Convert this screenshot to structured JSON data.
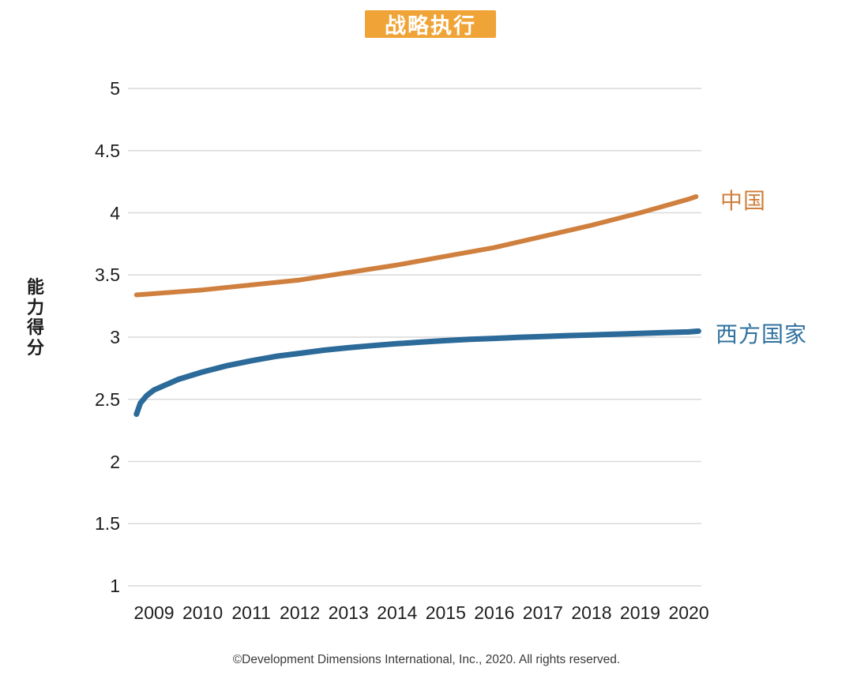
{
  "chart": {
    "title": "战略执行",
    "title_bg_color": "#F0A437",
    "title_text_color": "#FFFFFF",
    "y_axis": {
      "title": "能力得分",
      "tick_labels": [
        "5",
        "4.5",
        "4",
        "3.5",
        "3",
        "2.5",
        "2",
        "1.5",
        "1"
      ],
      "tick_values": [
        5,
        4.5,
        4,
        3.5,
        3,
        2.5,
        2,
        1.5,
        1
      ]
    },
    "x_axis": {
      "tick_labels": [
        "2009",
        "2010",
        "2011",
        "2012",
        "2013",
        "2014",
        "2015",
        "2016",
        "2017",
        "2018",
        "2019",
        "2020"
      ],
      "tick_values": [
        2009,
        2010,
        2011,
        2012,
        2013,
        2014,
        2015,
        2016,
        2017,
        2018,
        2019,
        2020
      ]
    },
    "grid_color": "#D9D9D9"
  },
  "chart_data": {
    "type": "line",
    "title": "战略执行",
    "xlabel": "",
    "ylabel": "能力得分",
    "ylim": [
      1,
      5
    ],
    "grid": "horizontal",
    "legend_position": "right of line ends",
    "categories": [
      2009,
      2010,
      2011,
      2012,
      2013,
      2014,
      2015,
      2016,
      2017,
      2018,
      2019,
      2020
    ],
    "series": [
      {
        "name": "中国",
        "color": "#D0803E",
        "line_width": 6,
        "values": [
          3.35,
          3.38,
          3.42,
          3.46,
          3.52,
          3.58,
          3.65,
          3.72,
          3.81,
          3.9,
          4.0,
          4.11
        ],
        "samples": [
          [
            2008.64,
            3.34
          ],
          [
            2009,
            3.35
          ],
          [
            2010,
            3.38
          ],
          [
            2011,
            3.42
          ],
          [
            2012,
            3.46
          ],
          [
            2013,
            3.52
          ],
          [
            2014,
            3.58
          ],
          [
            2015,
            3.65
          ],
          [
            2016,
            3.72
          ],
          [
            2017,
            3.81
          ],
          [
            2018,
            3.9
          ],
          [
            2019,
            4.0
          ],
          [
            2020,
            4.11
          ],
          [
            2020.15,
            4.13
          ]
        ]
      },
      {
        "name": "西方国家",
        "color": "#2B6A99",
        "line_width": 7,
        "values": [
          2.58,
          2.72,
          2.81,
          2.87,
          2.92,
          2.95,
          2.97,
          2.99,
          3.01,
          3.02,
          3.03,
          3.04
        ],
        "samples": [
          [
            2008.64,
            2.38
          ],
          [
            2008.72,
            2.47
          ],
          [
            2008.85,
            2.53
          ],
          [
            2009,
            2.575
          ],
          [
            2009.5,
            2.66
          ],
          [
            2010,
            2.72
          ],
          [
            2010.5,
            2.77
          ],
          [
            2011,
            2.81
          ],
          [
            2011.5,
            2.845
          ],
          [
            2012,
            2.87
          ],
          [
            2012.5,
            2.895
          ],
          [
            2013,
            2.915
          ],
          [
            2013.5,
            2.932
          ],
          [
            2014,
            2.947
          ],
          [
            2014.5,
            2.96
          ],
          [
            2015,
            2.972
          ],
          [
            2015.5,
            2.982
          ],
          [
            2016,
            2.99
          ],
          [
            2016.5,
            2.998
          ],
          [
            2017,
            3.005
          ],
          [
            2017.5,
            3.012
          ],
          [
            2018,
            3.018
          ],
          [
            2018.5,
            3.024
          ],
          [
            2019,
            3.03
          ],
          [
            2019.5,
            3.036
          ],
          [
            2020,
            3.042
          ],
          [
            2020.2,
            3.048
          ]
        ]
      }
    ]
  },
  "legend": {
    "china_label": "中国",
    "china_color": "#D0803E",
    "western_label": "西方国家",
    "western_color": "#30719F"
  },
  "footer": {
    "copyright": "©Development Dimensions International, Inc., 2020. All rights reserved."
  }
}
